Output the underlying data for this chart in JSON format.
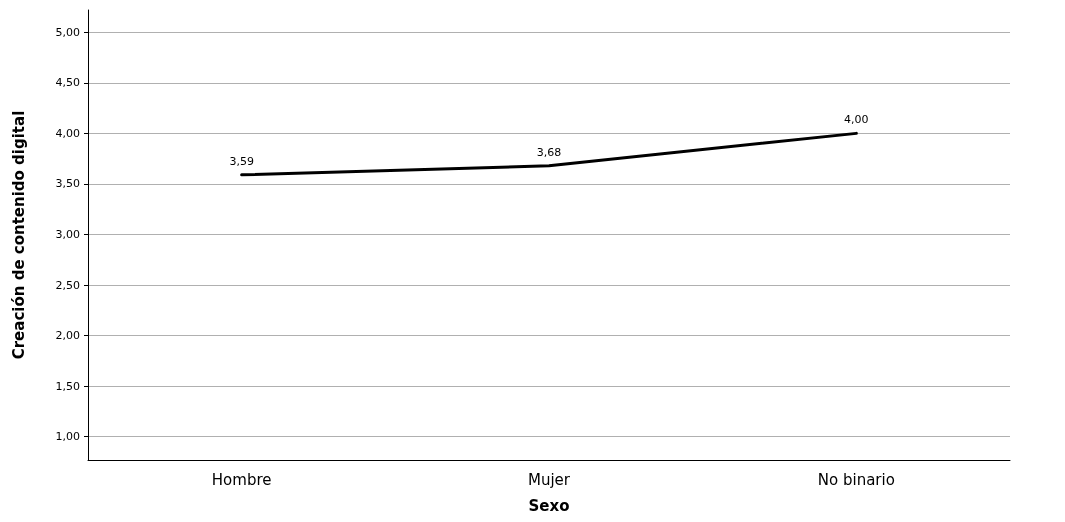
{
  "chart_data": {
    "type": "line",
    "xlabel": "Sexo",
    "ylabel": "Creación de contenido digital",
    "categories": [
      "Hombre",
      "Mujer",
      "No binario"
    ],
    "series": [
      {
        "color": "#000000",
        "values": [
          3.59,
          3.68,
          4.0
        ],
        "value_labels": [
          "3,59",
          "3,68",
          "4,00"
        ]
      }
    ],
    "ylim": [
      0.77,
      5.22
    ],
    "yticks": [
      {
        "value": 1,
        "label": "1,00"
      },
      {
        "value": 1.5,
        "label": "1,50"
      },
      {
        "value": 2,
        "label": "2,00"
      },
      {
        "value": 2.5,
        "label": "2,50"
      },
      {
        "value": 3,
        "label": "3,00"
      },
      {
        "value": 3.5,
        "label": "3,50"
      },
      {
        "value": 4,
        "label": "4,00"
      },
      {
        "value": 4.5,
        "label": "4,50"
      },
      {
        "value": 5,
        "label": "5,00"
      }
    ],
    "grid": "y",
    "marker": "none",
    "line_style": "solid"
  }
}
